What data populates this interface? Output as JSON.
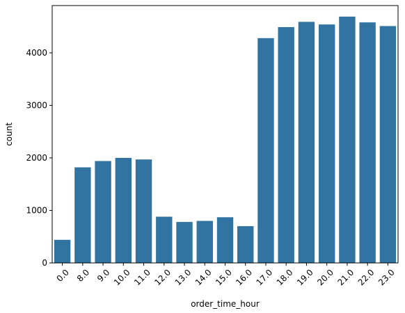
{
  "chart_data": {
    "type": "bar",
    "categories": [
      "0.0",
      "8.0",
      "9.0",
      "10.0",
      "11.0",
      "12.0",
      "13.0",
      "14.0",
      "15.0",
      "16.0",
      "17.0",
      "18.0",
      "19.0",
      "20.0",
      "21.0",
      "22.0",
      "23.0"
    ],
    "values": [
      440,
      1820,
      1940,
      2000,
      1970,
      880,
      780,
      800,
      870,
      700,
      4280,
      4490,
      4590,
      4540,
      4690,
      4580,
      4510
    ],
    "xlabel": "order_time_hour",
    "ylabel": "count",
    "ylim": [
      0,
      4900
    ],
    "yticks": [
      0,
      1000,
      2000,
      3000,
      4000
    ],
    "bar_color": "#3274a1",
    "grid": false,
    "xtick_rotation_deg": 45
  }
}
